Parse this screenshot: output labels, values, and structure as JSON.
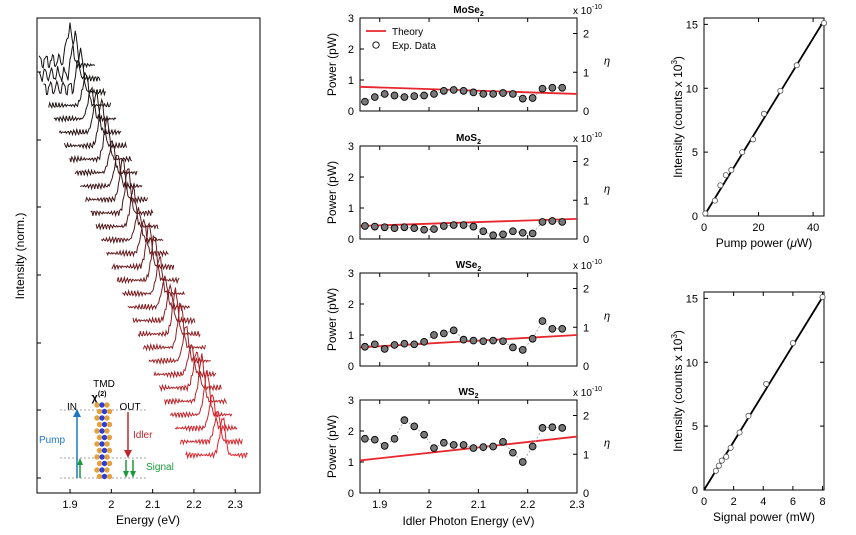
{
  "colors": {
    "theory": "#e8262d",
    "exp_fill": "#777777",
    "fit": "#000000",
    "pump": "#1f78c1",
    "idler": "#c0272d",
    "signal": "#1a9b3a",
    "molecule_orange": "#e3a13b",
    "molecule_blue": "#2b3fd6"
  },
  "chart_data": [
    {
      "id": "waterfall",
      "type": "line",
      "xlabel": "Energy (eV)",
      "ylabel": "Intensity (norm.)",
      "xlim": [
        1.82,
        2.36
      ],
      "xticks": [
        "1.9",
        "2",
        "2.1",
        "2.2",
        "2.3"
      ],
      "traces": 30,
      "peak_energy_start": 1.9,
      "peak_energy_end": 2.27,
      "inset": {
        "tmd": "TMD",
        "chi": "χ",
        "chi_sup": "(2)",
        "in": "IN",
        "out": "OUT",
        "pump": "Pump",
        "idler": "Idler",
        "signal": "Signal"
      }
    },
    {
      "id": "MoSe2",
      "type": "scatter",
      "title": "MoSe",
      "title_sub": "2",
      "xlim": [
        1.86,
        2.3
      ],
      "ylim": [
        0,
        3
      ],
      "ylabel": "Power (pW)",
      "y2label": "η",
      "y2lim": [
        0,
        2.4
      ],
      "y2exp": "x 10",
      "y2exp_sup": "-10",
      "legend": {
        "theory": "Theory",
        "exp": "Exp. Data"
      },
      "theory": [
        [
          1.86,
          0.78
        ],
        [
          2.3,
          0.55
        ]
      ],
      "x": [
        1.87,
        1.89,
        1.91,
        1.93,
        1.95,
        1.97,
        1.99,
        2.01,
        2.03,
        2.05,
        2.07,
        2.09,
        2.11,
        2.13,
        2.15,
        2.17,
        2.19,
        2.21,
        2.23,
        2.25,
        2.27
      ],
      "y": [
        0.3,
        0.45,
        0.55,
        0.5,
        0.45,
        0.48,
        0.5,
        0.55,
        0.65,
        0.68,
        0.65,
        0.6,
        0.55,
        0.55,
        0.58,
        0.55,
        0.4,
        0.42,
        0.72,
        0.75,
        0.75
      ]
    },
    {
      "id": "MoS2",
      "type": "scatter",
      "title": "MoS",
      "title_sub": "2",
      "xlim": [
        1.86,
        2.3
      ],
      "ylim": [
        0,
        3
      ],
      "ylabel": "Power (pW)",
      "y2label": "η",
      "y2lim": [
        0,
        2.4
      ],
      "y2exp": "x 10",
      "y2exp_sup": "-10",
      "theory": [
        [
          1.86,
          0.42
        ],
        [
          2.3,
          0.65
        ]
      ],
      "x": [
        1.87,
        1.89,
        1.91,
        1.93,
        1.95,
        1.97,
        1.99,
        2.01,
        2.03,
        2.05,
        2.07,
        2.09,
        2.11,
        2.13,
        2.15,
        2.17,
        2.19,
        2.21,
        2.23,
        2.25,
        2.27
      ],
      "y": [
        0.42,
        0.4,
        0.38,
        0.35,
        0.38,
        0.35,
        0.3,
        0.32,
        0.42,
        0.45,
        0.45,
        0.4,
        0.25,
        0.12,
        0.15,
        0.25,
        0.2,
        0.18,
        0.55,
        0.58,
        0.55
      ]
    },
    {
      "id": "WSe2",
      "type": "scatter",
      "title": "WSe",
      "title_sub": "2",
      "xlim": [
        1.86,
        2.3
      ],
      "ylim": [
        0,
        3
      ],
      "ylabel": "Power (pW)",
      "y2label": "η",
      "y2lim": [
        0,
        2.4
      ],
      "y2exp": "x 10",
      "y2exp_sup": "-10",
      "theory": [
        [
          1.86,
          0.6
        ],
        [
          2.3,
          1.0
        ]
      ],
      "x": [
        1.87,
        1.89,
        1.91,
        1.93,
        1.95,
        1.97,
        1.99,
        2.01,
        2.03,
        2.05,
        2.07,
        2.09,
        2.11,
        2.13,
        2.15,
        2.17,
        2.19,
        2.21,
        2.23,
        2.25,
        2.27
      ],
      "y": [
        0.62,
        0.7,
        0.55,
        0.68,
        0.72,
        0.7,
        0.78,
        1.0,
        1.05,
        1.15,
        0.85,
        0.82,
        0.8,
        0.82,
        0.8,
        0.6,
        0.52,
        0.88,
        1.45,
        1.2,
        1.2
      ]
    },
    {
      "id": "WS2",
      "type": "scatter",
      "title": "WS",
      "title_sub": "2",
      "xlim": [
        1.86,
        2.3
      ],
      "ylim": [
        0,
        3
      ],
      "ylabel": "Power (pW)",
      "y2label": "η",
      "y2lim": [
        0,
        2.4
      ],
      "y2exp": "x 10",
      "y2exp_sup": "-10",
      "xlabel": "Idler Photon Energy (eV)",
      "xticks": [
        "1.9",
        "2",
        "2.1",
        "2.2",
        "2.3"
      ],
      "theory": [
        [
          1.86,
          1.05
        ],
        [
          2.3,
          1.82
        ]
      ],
      "x": [
        1.87,
        1.89,
        1.91,
        1.93,
        1.95,
        1.97,
        1.99,
        2.01,
        2.03,
        2.05,
        2.07,
        2.09,
        2.11,
        2.13,
        2.15,
        2.17,
        2.19,
        2.21,
        2.23,
        2.25,
        2.27
      ],
      "y": [
        1.75,
        1.72,
        1.52,
        1.75,
        2.35,
        2.15,
        1.88,
        1.45,
        1.62,
        1.55,
        1.55,
        1.45,
        1.48,
        1.5,
        1.65,
        1.3,
        1.0,
        1.5,
        2.1,
        2.12,
        2.1
      ]
    },
    {
      "id": "pump",
      "type": "scatter",
      "xlabel": "Pump power (",
      "xlabel_mu": "μ",
      "xlabel_tail": "W)",
      "ylabel": "Intensity (counts x 10",
      "ylabel_sup": "3",
      "ylabel_tail": ")",
      "xlim": [
        0,
        44
      ],
      "ylim": [
        0,
        15.5
      ],
      "xticks": [
        "0",
        "20",
        "40"
      ],
      "yticks": [
        "0",
        "5",
        "10",
        "15"
      ],
      "fit": [
        [
          0,
          0
        ],
        [
          44,
          15.3
        ]
      ],
      "x": [
        0.5,
        4,
        6,
        8,
        10,
        14,
        18,
        22,
        28,
        34,
        44
      ],
      "y": [
        0.2,
        1.2,
        2.4,
        3.2,
        3.6,
        5.0,
        6.0,
        8.0,
        9.8,
        11.8,
        15.1
      ]
    },
    {
      "id": "signal",
      "type": "scatter",
      "xlabel": "Signal power (mW)",
      "ylabel": "Intensity (counts x 10",
      "ylabel_sup": "3",
      "ylabel_tail": ")",
      "xlim": [
        0,
        8.1
      ],
      "ylim": [
        0,
        15.5
      ],
      "xticks": [
        "0",
        "2",
        "4",
        "6",
        "8"
      ],
      "yticks": [
        "0",
        "5",
        "10",
        "15"
      ],
      "fit": [
        [
          0,
          0
        ],
        [
          8,
          15.1
        ]
      ],
      "x": [
        0.8,
        1.0,
        1.2,
        1.5,
        1.8,
        2.4,
        3.0,
        4.2,
        6.0,
        8.0
      ],
      "y": [
        1.5,
        1.9,
        2.3,
        2.6,
        3.3,
        4.5,
        5.8,
        8.3,
        11.5,
        15.1
      ]
    }
  ]
}
